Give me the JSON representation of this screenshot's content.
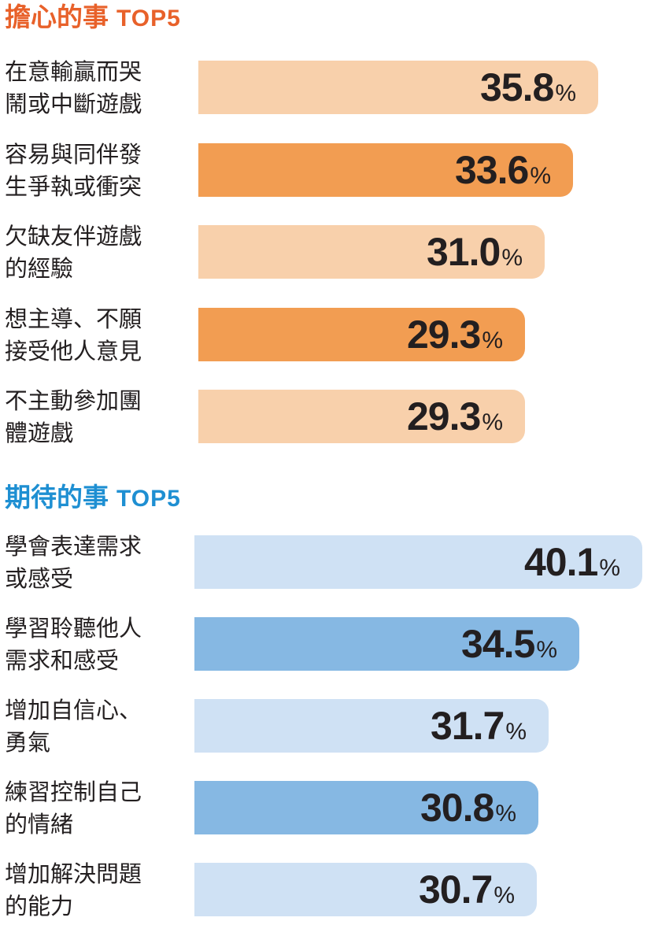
{
  "chart_data": [
    {
      "type": "bar",
      "title": "擔心的事",
      "title_suffix": "TOP5",
      "title_color": "#e8612a",
      "categories": [
        [
          "在意輸贏而哭",
          "鬧或中斷遊戲"
        ],
        [
          "容易與同伴發",
          "生爭執或衝突"
        ],
        [
          "欠缺友伴遊戲",
          "的經驗"
        ],
        [
          "想主導、不願",
          "接受他人意見"
        ],
        [
          "不主動參加團",
          "體遊戲"
        ]
      ],
      "values": [
        35.8,
        33.6,
        31.0,
        29.3,
        29.3
      ],
      "value_labels": [
        "35.8",
        "33.6",
        "31.0",
        "29.3",
        "29.3"
      ],
      "unit": "%",
      "bar_colors": [
        "#f8d0ab",
        "#f29d52",
        "#f8d0ab",
        "#f29d52",
        "#f8d0ab"
      ]
    },
    {
      "type": "bar",
      "title": "期待的事",
      "title_suffix": "TOP5",
      "title_color": "#1e8fd2",
      "categories": [
        [
          "學會表達需求",
          "或感受"
        ],
        [
          "學習聆聽他人",
          "需求和感受"
        ],
        [
          "增加自信心、",
          "勇氣"
        ],
        [
          "練習控制自己",
          "的情緒"
        ],
        [
          "增加解決問題",
          "的能力"
        ]
      ],
      "values": [
        40.1,
        34.5,
        31.7,
        30.8,
        30.7
      ],
      "value_labels": [
        "40.1",
        "34.5",
        "31.7",
        "30.8",
        "30.7"
      ],
      "unit": "%",
      "bar_colors": [
        "#cfe1f4",
        "#86b8e3",
        "#cfe1f4",
        "#86b8e3",
        "#cfe1f4"
      ]
    }
  ]
}
